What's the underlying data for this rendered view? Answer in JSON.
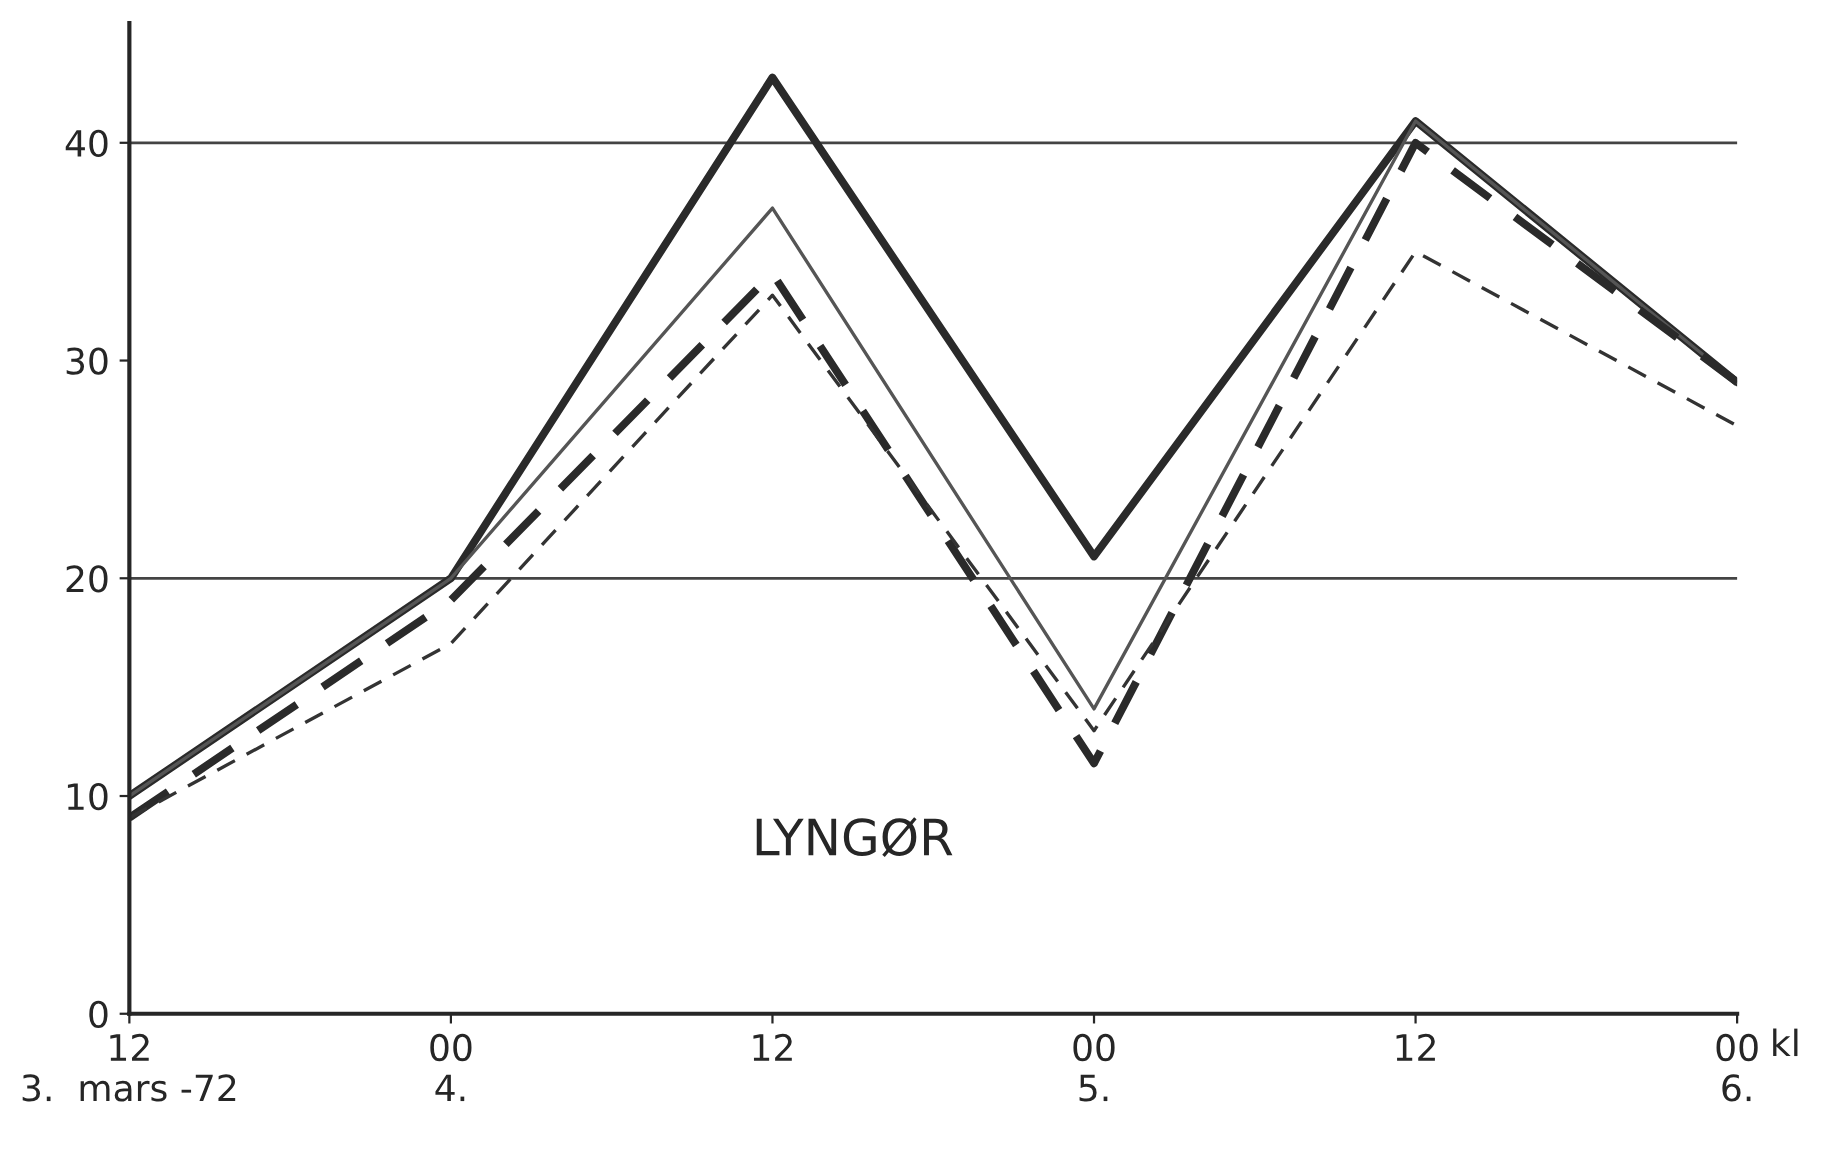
{
  "chart_data": {
    "type": "line",
    "categories": [
      "12\n3.  mars -72",
      "00\n4.",
      "12",
      "00\n5.",
      "12",
      "00\n6."
    ],
    "series": [
      {
        "color": "#2a2a2a",
        "values": [
          10,
          20,
          43,
          21,
          41,
          29
        ],
        "line_style": "solid"
      },
      {
        "color": "#555555",
        "values": [
          10,
          20,
          37,
          14,
          41,
          29
        ],
        "line_style": "solid"
      },
      {
        "color": "#2a2a2a",
        "values": [
          9,
          19,
          34,
          11.5,
          40,
          29
        ],
        "line_style": "dashed"
      },
      {
        "color": "#333333",
        "values": [
          9,
          17,
          33,
          13,
          35,
          27
        ],
        "line_style": "dashed"
      }
    ],
    "xlabel": "kl",
    "ylim": [
      0,
      45.5
    ],
    "yticks": [
      0,
      10,
      20,
      30,
      40
    ],
    "ref_lines": [
      {
        "axis": "y",
        "value": 20,
        "color": "#444444"
      },
      {
        "axis": "y",
        "value": 40,
        "color": "#444444"
      }
    ],
    "annotations": [
      "LYNGØR"
    ],
    "grid": false,
    "legend": false,
    "marker": "none"
  }
}
